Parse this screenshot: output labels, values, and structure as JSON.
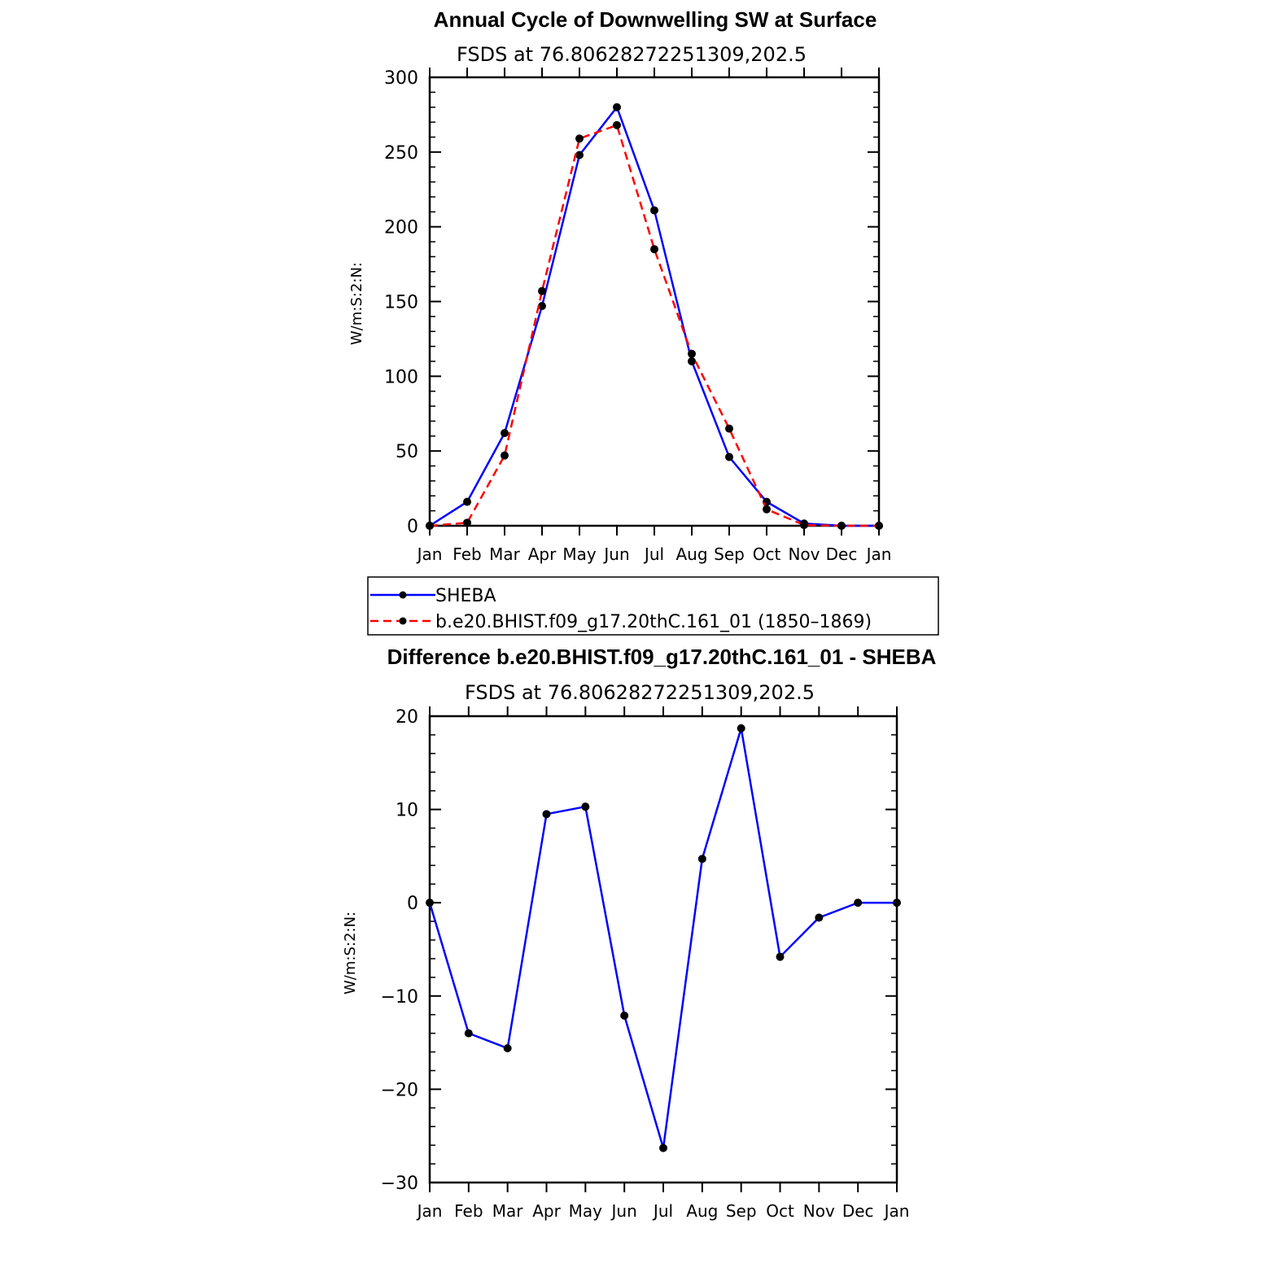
{
  "chart_data": [
    {
      "type": "line",
      "title": "Annual Cycle of Downwelling SW at Surface",
      "subtitle": "FSDS at 76.80628272251309,202.5",
      "xlabel": "",
      "ylabel": "W/m:S:2:N:",
      "categories": [
        "Jan",
        "Feb",
        "Mar",
        "Apr",
        "May",
        "Jun",
        "Jul",
        "Aug",
        "Sep",
        "Oct",
        "Nov",
        "Dec",
        "Jan"
      ],
      "ylim": [
        0,
        300
      ],
      "yticks": [
        "0",
        "50",
        "100",
        "150",
        "200",
        "250",
        "300"
      ],
      "grid": false,
      "series": [
        {
          "name": "SHEBA",
          "color": "#0000ff",
          "dash": "solid",
          "values": [
            0,
            16,
            62,
            147,
            248,
            280,
            211,
            110,
            46,
            16,
            1.5,
            0,
            0
          ]
        },
        {
          "name": "b.e20.BHIST.f09_g17.20thC.161_01 (1850–1869)",
          "color": "#ff0000",
          "dash": "dashed",
          "values": [
            0,
            2,
            47,
            157,
            259,
            268,
            185,
            115,
            65,
            11,
            0.5,
            0,
            0
          ]
        }
      ]
    },
    {
      "type": "line",
      "title": "Difference b.e20.BHIST.f09_g17.20thC.161_01 - SHEBA",
      "subtitle": "FSDS at 76.80628272251309,202.5",
      "xlabel": "",
      "ylabel": "W/m:S:2:N:",
      "categories": [
        "Jan",
        "Feb",
        "Mar",
        "Apr",
        "May",
        "Jun",
        "Jul",
        "Aug",
        "Sep",
        "Oct",
        "Nov",
        "Dec",
        "Jan"
      ],
      "ylim": [
        -30,
        20
      ],
      "yticks": [
        "−30",
        "−20",
        "−10",
        "0",
        "10",
        "20"
      ],
      "grid": false,
      "series": [
        {
          "color": "#0000ff",
          "dash": "solid",
          "values": [
            0,
            -14,
            -15.6,
            9.5,
            10.3,
            -12.1,
            -26.3,
            4.7,
            18.7,
            -5.8,
            -1.6,
            0,
            0
          ]
        }
      ]
    }
  ]
}
